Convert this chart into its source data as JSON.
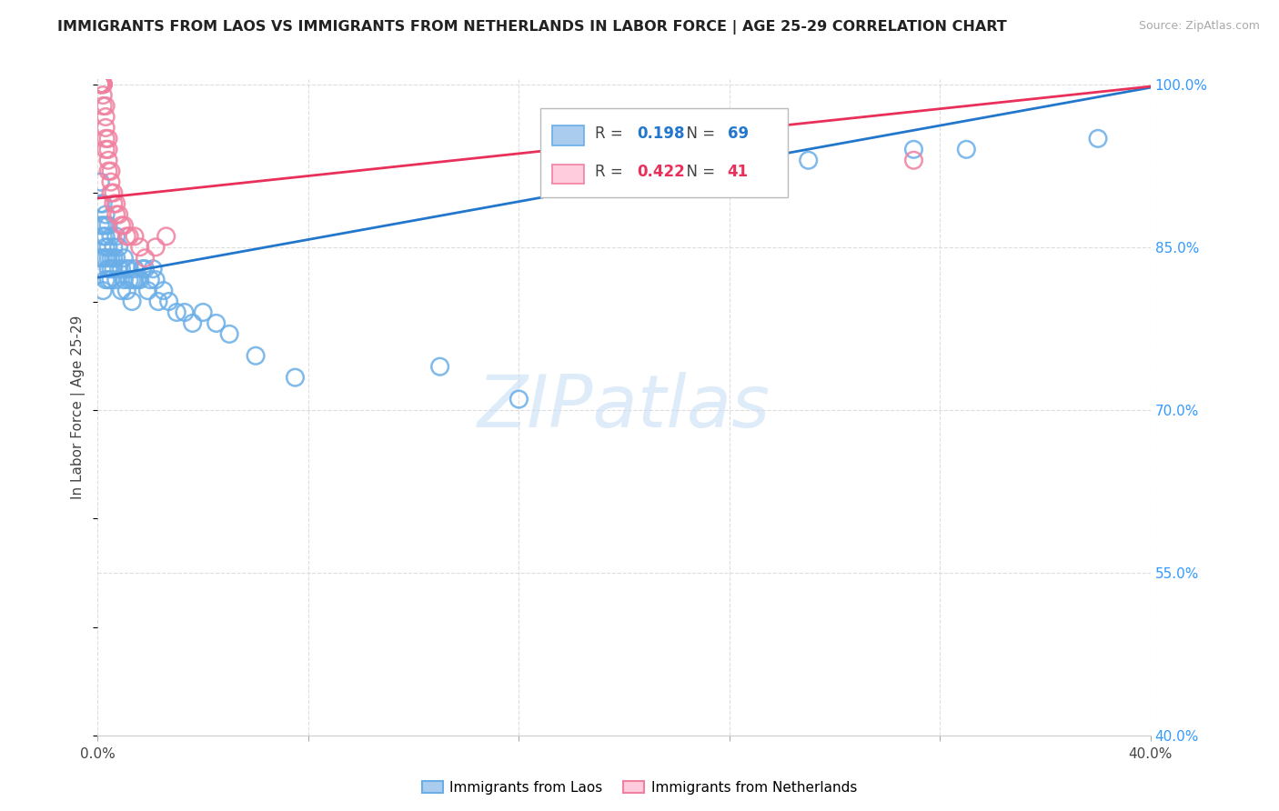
{
  "title": "IMMIGRANTS FROM LAOS VS IMMIGRANTS FROM NETHERLANDS IN LABOR FORCE | AGE 25-29 CORRELATION CHART",
  "source": "Source: ZipAtlas.com",
  "ylabel": "In Labor Force | Age 25-29",
  "xmin": 0.0,
  "xmax": 0.4,
  "ymin": 0.4,
  "ymax": 1.005,
  "x_ticks": [
    0.0,
    0.08,
    0.16,
    0.24,
    0.32,
    0.4
  ],
  "x_tick_labels": [
    "0.0%",
    "",
    "",
    "",
    "",
    "40.0%"
  ],
  "y_ticks_right": [
    0.4,
    0.55,
    0.7,
    0.85,
    1.0
  ],
  "y_tick_labels_right": [
    "40.0%",
    "55.0%",
    "70.0%",
    "85.0%",
    "100.0%"
  ],
  "legend1_label": "Immigrants from Laos",
  "legend2_label": "Immigrants from Netherlands",
  "r_laos": 0.198,
  "n_laos": 69,
  "r_neth": 0.422,
  "n_neth": 41,
  "blue_color": "#6aaee8",
  "pink_color": "#f080a0",
  "blue_line_color": "#2277cc",
  "pink_line_color": "#e8305a",
  "watermark_color": "#deeeff",
  "laos_x": [
    0.001,
    0.001,
    0.001,
    0.001,
    0.002,
    0.002,
    0.002,
    0.002,
    0.002,
    0.003,
    0.003,
    0.003,
    0.003,
    0.003,
    0.003,
    0.004,
    0.004,
    0.004,
    0.004,
    0.004,
    0.005,
    0.005,
    0.005,
    0.005,
    0.006,
    0.006,
    0.006,
    0.007,
    0.007,
    0.007,
    0.008,
    0.008,
    0.009,
    0.009,
    0.01,
    0.01,
    0.011,
    0.011,
    0.012,
    0.012,
    0.013,
    0.013,
    0.014,
    0.014,
    0.015,
    0.016,
    0.017,
    0.018,
    0.019,
    0.02,
    0.021,
    0.022,
    0.023,
    0.025,
    0.027,
    0.03,
    0.033,
    0.036,
    0.04,
    0.045,
    0.05,
    0.06,
    0.075,
    0.13,
    0.16,
    0.27,
    0.31,
    0.33,
    0.38
  ],
  "laos_y": [
    0.87,
    0.89,
    0.91,
    0.84,
    0.86,
    0.87,
    0.89,
    0.84,
    0.81,
    0.85,
    0.86,
    0.87,
    0.88,
    0.84,
    0.82,
    0.85,
    0.87,
    0.83,
    0.84,
    0.82,
    0.86,
    0.84,
    0.83,
    0.82,
    0.83,
    0.84,
    0.85,
    0.82,
    0.84,
    0.86,
    0.83,
    0.85,
    0.81,
    0.83,
    0.84,
    0.82,
    0.81,
    0.83,
    0.82,
    0.83,
    0.8,
    0.82,
    0.83,
    0.82,
    0.82,
    0.82,
    0.83,
    0.83,
    0.81,
    0.82,
    0.83,
    0.82,
    0.8,
    0.81,
    0.8,
    0.79,
    0.79,
    0.78,
    0.79,
    0.78,
    0.77,
    0.75,
    0.73,
    0.74,
    0.71,
    0.93,
    0.94,
    0.94,
    0.95
  ],
  "neth_x": [
    0.001,
    0.001,
    0.001,
    0.001,
    0.001,
    0.001,
    0.001,
    0.001,
    0.002,
    0.002,
    0.002,
    0.002,
    0.002,
    0.002,
    0.003,
    0.003,
    0.003,
    0.003,
    0.003,
    0.004,
    0.004,
    0.004,
    0.004,
    0.005,
    0.005,
    0.005,
    0.006,
    0.006,
    0.007,
    0.007,
    0.008,
    0.009,
    0.01,
    0.011,
    0.012,
    0.014,
    0.016,
    0.018,
    0.022,
    0.026,
    0.31
  ],
  "neth_y": [
    1.0,
    1.0,
    1.0,
    1.0,
    1.0,
    1.0,
    1.0,
    1.0,
    1.0,
    1.0,
    1.0,
    1.0,
    0.99,
    0.98,
    0.98,
    0.97,
    0.96,
    0.95,
    0.94,
    0.95,
    0.94,
    0.93,
    0.92,
    0.92,
    0.91,
    0.9,
    0.9,
    0.89,
    0.89,
    0.88,
    0.88,
    0.87,
    0.87,
    0.86,
    0.86,
    0.86,
    0.85,
    0.84,
    0.85,
    0.86,
    0.93
  ],
  "blue_trend_x0": 0.0,
  "blue_trend_y0": 0.822,
  "blue_trend_x1": 0.4,
  "blue_trend_y1": 0.997,
  "pink_trend_x0": 0.0,
  "pink_trend_y0": 0.895,
  "pink_trend_x1": 0.4,
  "pink_trend_y1": 0.998
}
